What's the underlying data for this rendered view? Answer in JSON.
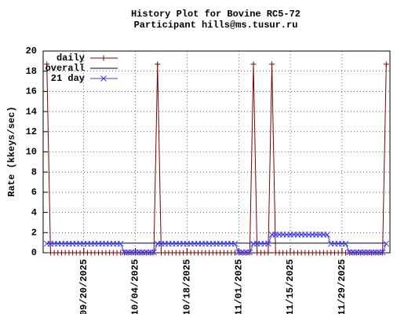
{
  "chart_data": {
    "type": "line",
    "title": "History Plot for Bovine RC5-72",
    "subtitle": "Participant hills@ms.tusur.ru",
    "y_label": "Rate (kkeys/sec)",
    "x": [
      "2025-09-10",
      "2025-09-11",
      "2025-09-12",
      "2025-09-13",
      "2025-09-14",
      "2025-09-15",
      "2025-09-16",
      "2025-09-17",
      "2025-09-18",
      "2025-09-19",
      "2025-09-20",
      "2025-09-21",
      "2025-09-22",
      "2025-09-23",
      "2025-09-24",
      "2025-09-25",
      "2025-09-26",
      "2025-09-27",
      "2025-09-28",
      "2025-09-29",
      "2025-09-30",
      "2025-10-01",
      "2025-10-02",
      "2025-10-03",
      "2025-10-04",
      "2025-10-05",
      "2025-10-06",
      "2025-10-07",
      "2025-10-08",
      "2025-10-09",
      "2025-10-10",
      "2025-10-11",
      "2025-10-12",
      "2025-10-13",
      "2025-10-14",
      "2025-10-15",
      "2025-10-16",
      "2025-10-17",
      "2025-10-18",
      "2025-10-19",
      "2025-10-20",
      "2025-10-21",
      "2025-10-22",
      "2025-10-23",
      "2025-10-24",
      "2025-10-25",
      "2025-10-26",
      "2025-10-27",
      "2025-10-28",
      "2025-10-29",
      "2025-10-30",
      "2025-10-31",
      "2025-11-01",
      "2025-11-02",
      "2025-11-03",
      "2025-11-04",
      "2025-11-05",
      "2025-11-06",
      "2025-11-07",
      "2025-11-08",
      "2025-11-09",
      "2025-11-10",
      "2025-11-11",
      "2025-11-12",
      "2025-11-13",
      "2025-11-14",
      "2025-11-15",
      "2025-11-16",
      "2025-11-17",
      "2025-11-18",
      "2025-11-19",
      "2025-11-20",
      "2025-11-21",
      "2025-11-22",
      "2025-11-23",
      "2025-11-24",
      "2025-11-25",
      "2025-11-26",
      "2025-11-27",
      "2025-11-28",
      "2025-11-29",
      "2025-11-30",
      "2025-12-01",
      "2025-12-02",
      "2025-12-03",
      "2025-12-04",
      "2025-12-05",
      "2025-12-06",
      "2025-12-07",
      "2025-12-08",
      "2025-12-09",
      "2025-12-10",
      "2025-12-11"
    ],
    "series": [
      {
        "name": "daily",
        "color": "#800000",
        "marker": "plus",
        "values": [
          18.7,
          0,
          0,
          0,
          0,
          0,
          0,
          0,
          0,
          0,
          0,
          0,
          0,
          0,
          0,
          0,
          0,
          0,
          0,
          0,
          0,
          0,
          0,
          0,
          0,
          0,
          0,
          0,
          0,
          0,
          18.7,
          0,
          0,
          0,
          0,
          0,
          0,
          0,
          0,
          0,
          0,
          0,
          0,
          0,
          0,
          0,
          0,
          0,
          0,
          0,
          0,
          0,
          0,
          0,
          0,
          0,
          18.7,
          0,
          0,
          0,
          0,
          18.7,
          0,
          0,
          0,
          0,
          0,
          0,
          0,
          0,
          0,
          0,
          0,
          0,
          0,
          0,
          0,
          0,
          0,
          0,
          0,
          0,
          0,
          0,
          0,
          0,
          0,
          0,
          0,
          0,
          0,
          0,
          18.7
        ]
      },
      {
        "name": "overall",
        "color": "#000033",
        "marker": "none",
        "values": [
          0.95,
          0.95,
          0.95,
          0.95,
          0.95,
          0.95,
          0.95,
          0.95,
          0.95,
          0.95,
          0.95,
          0.95,
          0.95,
          0.95,
          0.95,
          0.95,
          0.95,
          0.95,
          0.95,
          0.95,
          0.95,
          0.95,
          0.95,
          0.95,
          0.95,
          0.95,
          0.95,
          0.95,
          0.95,
          0.95,
          0.95,
          0.95,
          0.95,
          0.95,
          0.95,
          0.95,
          0.95,
          0.95,
          0.95,
          0.95,
          0.95,
          0.95,
          0.95,
          0.95,
          0.95,
          0.95,
          0.95,
          0.95,
          0.95,
          0.95,
          0.95,
          0.95,
          0.95,
          0.95,
          0.95,
          0.95,
          0.95,
          0.95,
          0.95,
          0.95,
          0.95,
          0.95,
          0.95,
          0.95,
          0.95,
          0.95,
          0.95,
          0.95,
          0.95,
          0.95,
          0.95,
          0.95,
          0.95,
          0.95,
          0.95,
          0.95,
          0.95,
          0.95,
          0.95,
          0.95,
          0.95,
          0.95,
          0.95,
          0.95,
          0.95,
          0.95,
          0.95,
          0.95,
          0.95,
          0.95,
          0.95,
          0.95,
          0.95
        ]
      },
      {
        "name": "21 day",
        "color": "#3c3cf0",
        "marker": "cross",
        "values": [
          0.9,
          0.9,
          0.9,
          0.9,
          0.9,
          0.9,
          0.9,
          0.9,
          0.9,
          0.9,
          0.9,
          0.9,
          0.9,
          0.9,
          0.9,
          0.9,
          0.9,
          0.9,
          0.9,
          0.9,
          0.9,
          0.05,
          0.05,
          0.05,
          0.05,
          0.05,
          0.05,
          0.05,
          0.05,
          0.05,
          0.9,
          0.9,
          0.9,
          0.9,
          0.9,
          0.9,
          0.9,
          0.9,
          0.9,
          0.9,
          0.9,
          0.9,
          0.9,
          0.9,
          0.9,
          0.9,
          0.9,
          0.9,
          0.9,
          0.9,
          0.9,
          0.9,
          0.05,
          0.05,
          0.05,
          0.05,
          0.9,
          0.9,
          0.9,
          0.9,
          0.9,
          1.8,
          1.8,
          1.8,
          1.8,
          1.8,
          1.8,
          1.8,
          1.8,
          1.8,
          1.8,
          1.8,
          1.8,
          1.8,
          1.8,
          1.8,
          1.8,
          0.9,
          0.9,
          0.9,
          0.9,
          0.9,
          0.05,
          0.05,
          0.05,
          0.05,
          0.05,
          0.05,
          0.05,
          0.05,
          0.05,
          0.05,
          0.9
        ]
      }
    ],
    "xlim": [
      "2025-09-09",
      "2025-12-12"
    ],
    "xticks": [
      {
        "value": "2025-09-20",
        "label": "09/20/2025"
      },
      {
        "value": "2025-10-04",
        "label": "10/04/2025"
      },
      {
        "value": "2025-10-18",
        "label": "10/18/2025"
      },
      {
        "value": "2025-11-01",
        "label": "11/01/2025"
      },
      {
        "value": "2025-11-15",
        "label": "11/15/2025"
      },
      {
        "value": "2025-11-29",
        "label": "11/29/2025"
      }
    ],
    "ylim": [
      0,
      20
    ],
    "yticks": [
      0,
      2,
      4,
      6,
      8,
      10,
      12,
      14,
      16,
      18,
      20
    ],
    "grid": true,
    "legend": "top-left"
  }
}
